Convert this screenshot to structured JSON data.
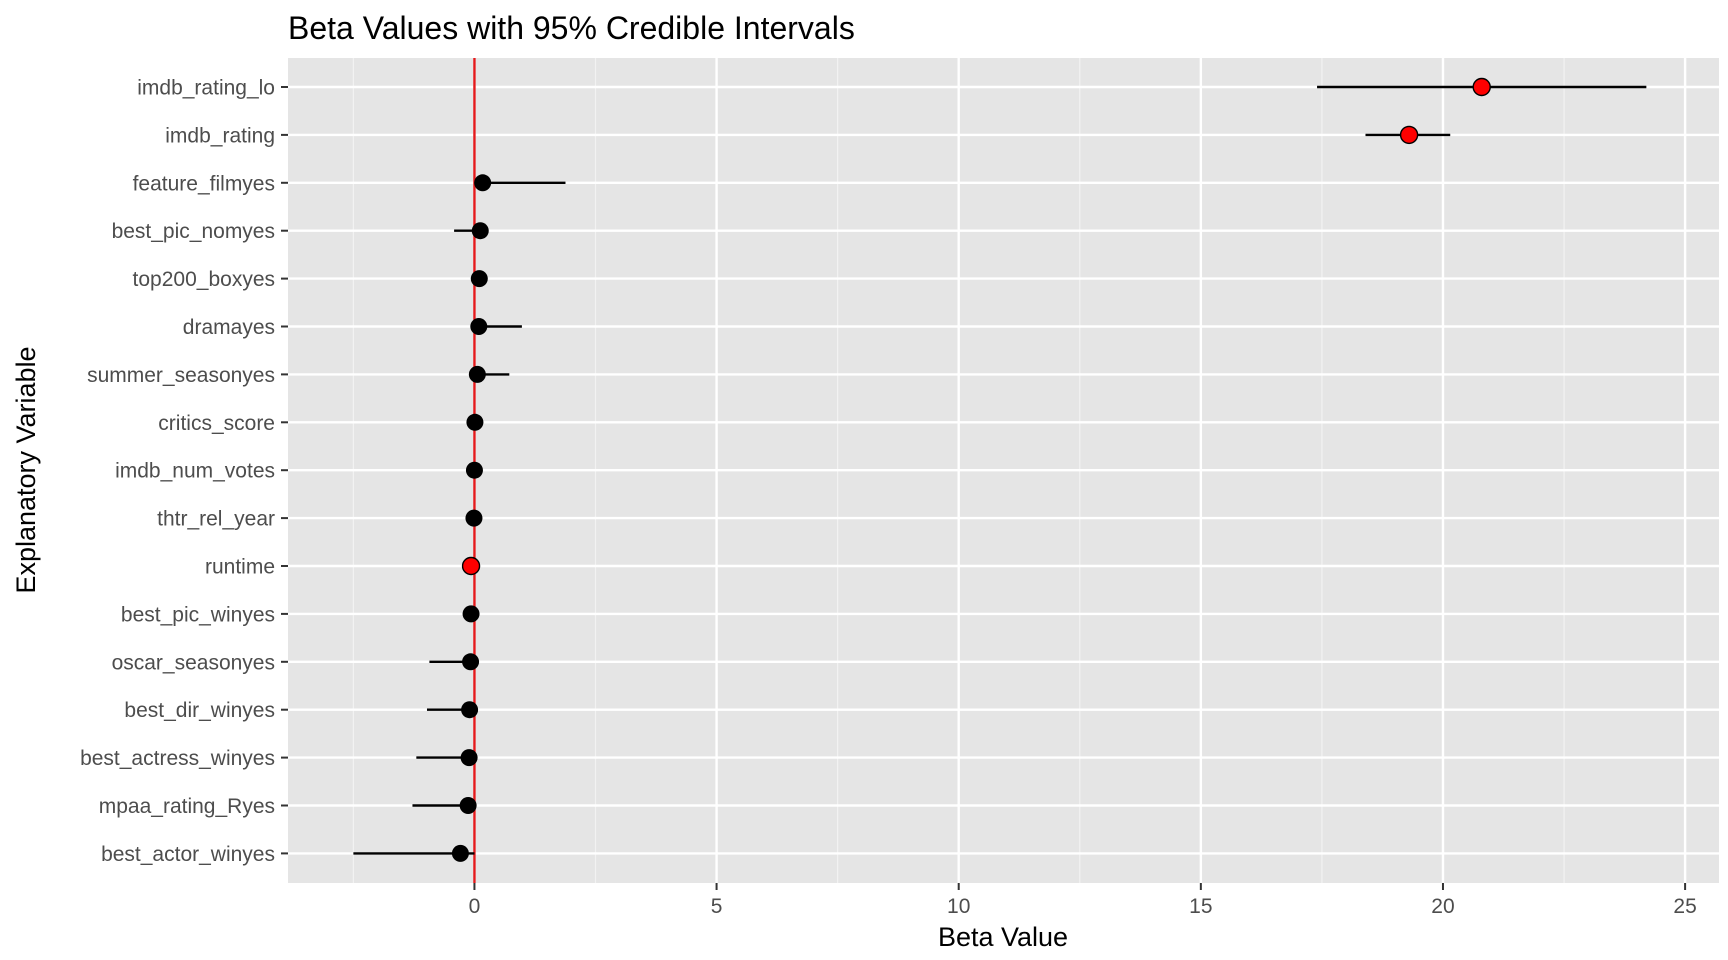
{
  "chart_data": {
    "type": "scatter",
    "subtype": "point-range",
    "title": "Beta Values with 95% Credible Intervals",
    "xlabel": "Beta Value",
    "ylabel": "Explanatory Variable",
    "xlim": [
      -3.85,
      25.7
    ],
    "x_ticks": [
      "0",
      "5",
      "10",
      "15",
      "20",
      "25"
    ],
    "x_tick_values": [
      0,
      5,
      10,
      15,
      20,
      25
    ],
    "reference_line": {
      "x": 0,
      "color": "#e41a1c"
    },
    "grid": true,
    "panel_background": "#e5e5e5",
    "grid_color": "#ffffff",
    "point_color_default": "#000000",
    "point_color_highlight": "#ff0000",
    "categories": [
      "imdb_rating_lo",
      "imdb_rating",
      "feature_filmyes",
      "best_pic_nomyes",
      "top200_boxyes",
      "dramayes",
      "summer_seasonyes",
      "critics_score",
      "imdb_num_votes",
      "thtr_rel_year",
      "runtime",
      "best_pic_winyes",
      "oscar_seasonyes",
      "best_dir_winyes",
      "best_actress_winyes",
      "mpaa_rating_Ryes",
      "best_actor_winyes"
    ],
    "values": [
      20.8,
      19.3,
      0.17,
      0.12,
      0.1,
      0.09,
      0.06,
      0.01,
      0.0,
      -0.01,
      -0.07,
      -0.07,
      -0.08,
      -0.1,
      -0.11,
      -0.13,
      -0.29
    ],
    "lower": [
      17.4,
      18.4,
      0.03,
      -0.42,
      0.04,
      0.0,
      0.0,
      -0.01,
      0.0,
      -0.02,
      -0.1,
      -0.1,
      -0.93,
      -0.98,
      -1.2,
      -1.28,
      -2.5
    ],
    "upper": [
      24.2,
      20.15,
      1.88,
      0.18,
      0.14,
      0.98,
      0.72,
      0.03,
      0.0,
      0.0,
      -0.04,
      -0.04,
      0.05,
      0.03,
      0.02,
      0.01,
      0.0
    ],
    "highlight": [
      true,
      true,
      false,
      false,
      false,
      false,
      false,
      false,
      false,
      false,
      true,
      false,
      false,
      false,
      false,
      false,
      false
    ]
  }
}
